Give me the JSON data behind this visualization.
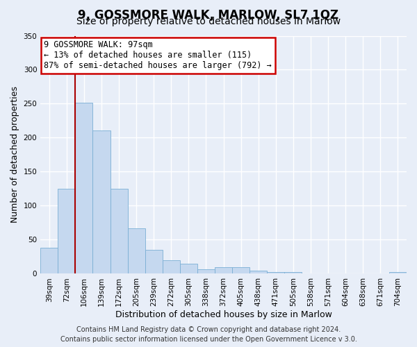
{
  "title": "9, GOSSMORE WALK, MARLOW, SL7 1QZ",
  "subtitle": "Size of property relative to detached houses in Marlow",
  "xlabel": "Distribution of detached houses by size in Marlow",
  "ylabel": "Number of detached properties",
  "bar_labels": [
    "39sqm",
    "72sqm",
    "106sqm",
    "139sqm",
    "172sqm",
    "205sqm",
    "239sqm",
    "272sqm",
    "305sqm",
    "338sqm",
    "372sqm",
    "405sqm",
    "438sqm",
    "471sqm",
    "505sqm",
    "538sqm",
    "571sqm",
    "604sqm",
    "638sqm",
    "671sqm",
    "704sqm"
  ],
  "bar_values": [
    38,
    125,
    252,
    211,
    125,
    67,
    35,
    20,
    15,
    7,
    10,
    10,
    5,
    2,
    2,
    0,
    0,
    0,
    0,
    0,
    2
  ],
  "bar_color": "#c5d8ef",
  "bar_edge_color": "#7aafd4",
  "vline_index": 2,
  "vline_color": "#aa0000",
  "ylim": [
    0,
    350
  ],
  "yticks": [
    0,
    50,
    100,
    150,
    200,
    250,
    300,
    350
  ],
  "annotation_title": "9 GOSSMORE WALK: 97sqm",
  "annotation_line1": "← 13% of detached houses are smaller (115)",
  "annotation_line2": "87% of semi-detached houses are larger (792) →",
  "annotation_box_color": "#ffffff",
  "annotation_box_edge": "#cc0000",
  "footer_line1": "Contains HM Land Registry data © Crown copyright and database right 2024.",
  "footer_line2": "Contains public sector information licensed under the Open Government Licence v 3.0.",
  "background_color": "#e8eef8",
  "plot_bg_color": "#e8eef8",
  "grid_color": "#ffffff",
  "title_fontsize": 12,
  "subtitle_fontsize": 10,
  "axis_label_fontsize": 9,
  "tick_fontsize": 7.5,
  "footer_fontsize": 7
}
